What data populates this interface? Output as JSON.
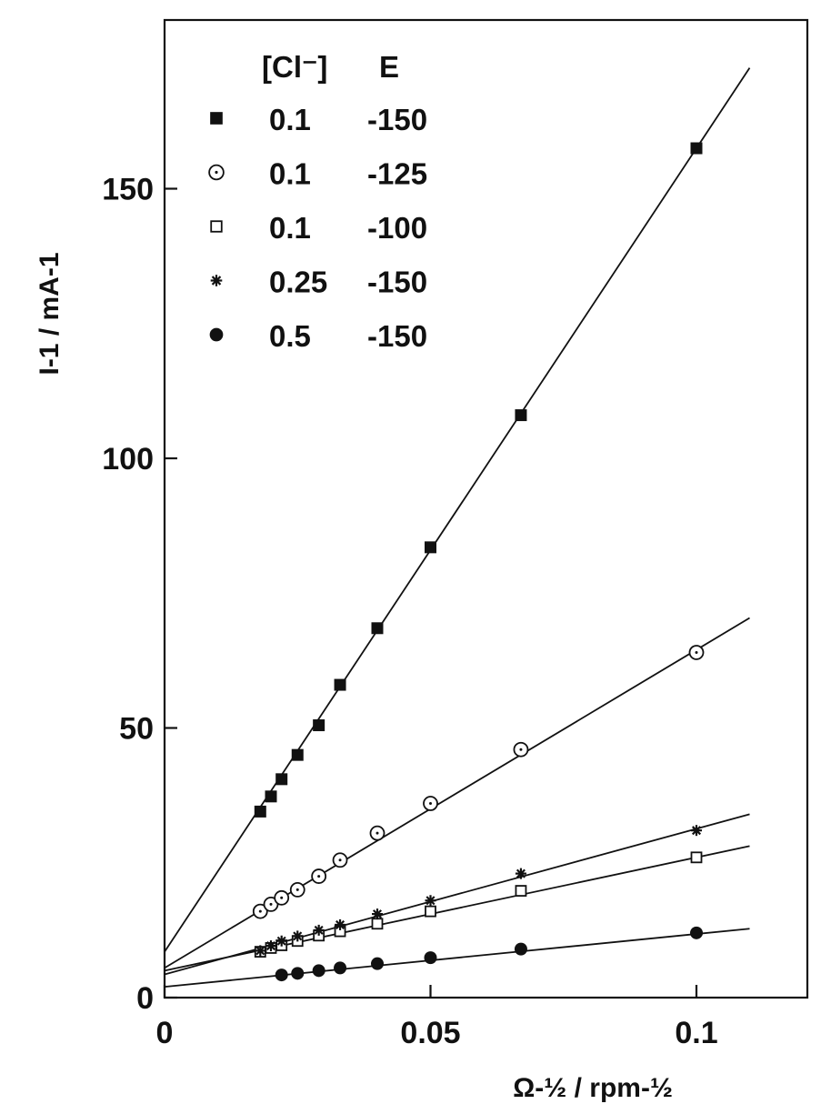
{
  "chart_data": {
    "type": "scatter",
    "xlabel": "Ω-½ / rpm-½",
    "ylabel": "I-1 / mA-1",
    "xlim": [
      0,
      0.12
    ],
    "ylim": [
      0,
      180
    ],
    "x_ticks": [
      "0",
      "0.05",
      "0.1"
    ],
    "y_ticks": [
      "0",
      "50",
      "100",
      "150"
    ],
    "grid": false,
    "legend": {
      "position": "top-left",
      "headers": [
        "[Cl⁻]",
        "E"
      ],
      "entries": [
        {
          "marker": "filled-square",
          "cl": "0.1",
          "e": "-150"
        },
        {
          "marker": "dotted-circle",
          "cl": "0.1",
          "e": "-125"
        },
        {
          "marker": "open-square",
          "cl": "0.1",
          "e": "-100"
        },
        {
          "marker": "star",
          "cl": "0.25",
          "e": "-150"
        },
        {
          "marker": "filled-circle",
          "cl": "0.5",
          "e": "-150"
        }
      ]
    },
    "series": [
      {
        "marker": "filled-square",
        "x": [
          0.018,
          0.02,
          0.022,
          0.025,
          0.029,
          0.033,
          0.04,
          0.05,
          0.067,
          0.1
        ],
        "y": [
          34.5,
          37.3,
          40.5,
          45.0,
          50.5,
          58.0,
          68.5,
          83.5,
          108.0,
          157.5
        ],
        "fit": {
          "slope": 1490,
          "intercept": 8.5,
          "x_end": 0.11
        }
      },
      {
        "marker": "dotted-circle",
        "x": [
          0.018,
          0.02,
          0.022,
          0.025,
          0.029,
          0.033,
          0.04,
          0.05,
          0.067,
          0.1
        ],
        "y": [
          16.0,
          17.3,
          18.5,
          20.0,
          22.5,
          25.5,
          30.5,
          36.0,
          46.0,
          64.0
        ],
        "fit": {
          "slope": 590,
          "intercept": 5.5,
          "x_end": 0.11
        }
      },
      {
        "marker": "open-square",
        "x": [
          0.018,
          0.02,
          0.022,
          0.025,
          0.029,
          0.033,
          0.04,
          0.05,
          0.067,
          0.1
        ],
        "y": [
          8.5,
          9.2,
          9.7,
          10.5,
          11.5,
          12.3,
          13.7,
          16.0,
          19.8,
          26.0
        ],
        "fit": {
          "slope": 210,
          "intercept": 5.0,
          "x_end": 0.11
        }
      },
      {
        "marker": "star",
        "x": [
          0.018,
          0.02,
          0.022,
          0.025,
          0.029,
          0.033,
          0.04,
          0.05,
          0.067,
          0.1
        ],
        "y": [
          8.7,
          9.6,
          10.5,
          11.4,
          12.5,
          13.5,
          15.5,
          18.0,
          23.0,
          31.0
        ],
        "fit": {
          "slope": 270,
          "intercept": 4.3,
          "x_end": 0.11
        }
      },
      {
        "marker": "filled-circle",
        "x": [
          0.022,
          0.025,
          0.029,
          0.033,
          0.04,
          0.05,
          0.067,
          0.1
        ],
        "y": [
          4.2,
          4.5,
          5.0,
          5.5,
          6.3,
          7.4,
          9.0,
          12.0
        ],
        "fit": {
          "slope": 98,
          "intercept": 2.0,
          "x_end": 0.11
        }
      }
    ]
  }
}
